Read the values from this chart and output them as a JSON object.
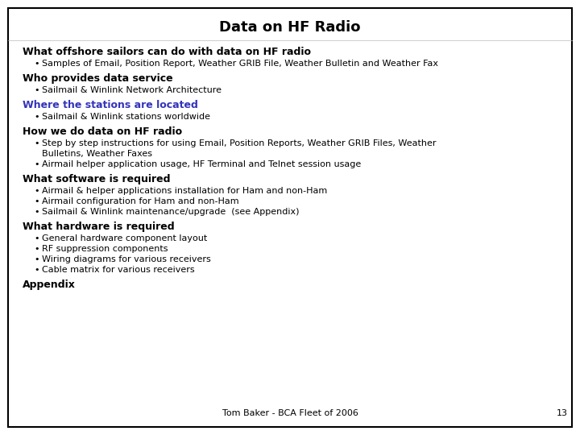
{
  "title": "Data on HF Radio",
  "background_color": "#ffffff",
  "border_color": "#000000",
  "title_fontsize": 13,
  "footer_text": "Tom Baker - BCA Fleet of 2006",
  "page_number": "13",
  "heading_fontsize": 9,
  "bullet_fontsize": 8,
  "sections": [
    {
      "heading": "What offshore sailors can do with data on HF radio",
      "heading_color": "#000000",
      "bullets": [
        [
          "Samples of Email, Position Report, Weather GRIB File, Weather Bulletin and Weather Fax"
        ]
      ]
    },
    {
      "heading": "Who provides data service",
      "heading_color": "#000000",
      "bullets": [
        [
          "Sailmail & Winlink Network Architecture"
        ]
      ]
    },
    {
      "heading": "Where the stations are located",
      "heading_color": "#3333bb",
      "bullets": [
        [
          "Sailmail & Winlink stations worldwide"
        ]
      ]
    },
    {
      "heading": "How we do data on HF radio",
      "heading_color": "#000000",
      "bullets": [
        [
          "Step by step instructions for using Email, Position Reports, Weather GRIB Files, Weather",
          "Bulletins, Weather Faxes"
        ],
        [
          "Airmail helper application usage, HF Terminal and Telnet session usage"
        ]
      ]
    },
    {
      "heading": "What software is required",
      "heading_color": "#000000",
      "bullets": [
        [
          "Airmail & helper applications installation for Ham and non-Ham"
        ],
        [
          "Airmail configuration for Ham and non-Ham"
        ],
        [
          "Sailmail & Winlink maintenance/upgrade  (see Appendix)"
        ]
      ]
    },
    {
      "heading": "What hardware is required",
      "heading_color": "#000000",
      "bullets": [
        [
          "General hardware component layout"
        ],
        [
          "RF suppression components"
        ],
        [
          "Wiring diagrams for various receivers"
        ],
        [
          "Cable matrix for various receivers"
        ]
      ]
    },
    {
      "heading": "Appendix",
      "heading_color": "#000000",
      "bullets": []
    }
  ]
}
